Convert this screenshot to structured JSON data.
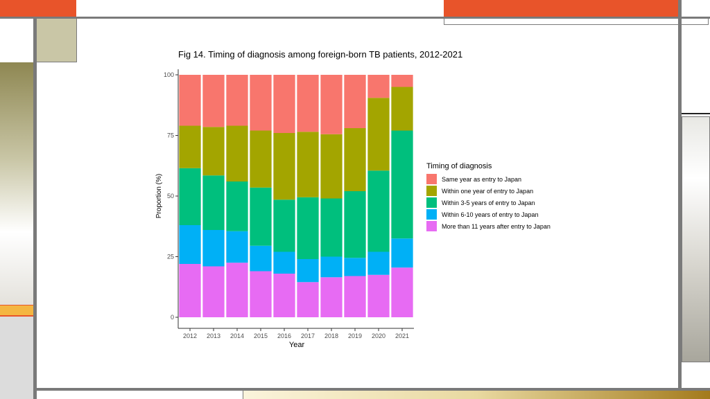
{
  "slide": {
    "colors": {
      "orange": "#E8542A",
      "frame_gray": "#7A7A7A",
      "khaki": "#C9C6A6",
      "olive": "#8E8752",
      "amber": "#F4B642",
      "bronze": "#A37A1C"
    }
  },
  "chart_data": {
    "type": "bar",
    "stacked": true,
    "percent": true,
    "title": "Fig 14. Timing of diagnosis among foreign-born TB patients, 2012-2021",
    "xlabel": "Year",
    "ylabel": "Proportion (%)",
    "ylim": [
      0,
      100
    ],
    "yticks": [
      "0",
      "25",
      "50",
      "75",
      "100"
    ],
    "categories": [
      "2012",
      "2013",
      "2014",
      "2015",
      "2016",
      "2017",
      "2018",
      "2019",
      "2020",
      "2021"
    ],
    "legend_title": "Timing of diagnosis",
    "legend_position": "right",
    "grid": false,
    "series": [
      {
        "name": "More than 11 years after entry to Japan",
        "color": "#E76BF3",
        "values": [
          22,
          21,
          22.5,
          19,
          18,
          14.5,
          16.5,
          17,
          17.5,
          20.5
        ]
      },
      {
        "name": "Within 6-10 years of entry to Japan",
        "color": "#00B0F6",
        "values": [
          16,
          15,
          13,
          10.5,
          9,
          9.5,
          8.5,
          7.5,
          9.5,
          12
        ]
      },
      {
        "name": "Within 3-5 years of entry to Japan",
        "color": "#00BF7D",
        "values": [
          23.5,
          22.5,
          20.5,
          24,
          21.5,
          25.5,
          24,
          27.5,
          33.5,
          44.5
        ]
      },
      {
        "name": "Within one year of entry to Japan",
        "color": "#A3A500",
        "values": [
          17.5,
          20,
          23,
          23.5,
          27.5,
          27,
          26.5,
          26,
          30,
          18
        ]
      },
      {
        "name": "Same year as entry to Japan",
        "color": "#F8766D",
        "values": [
          21,
          21.5,
          21,
          23,
          24,
          23.5,
          24.5,
          22,
          9.5,
          5
        ]
      }
    ]
  }
}
